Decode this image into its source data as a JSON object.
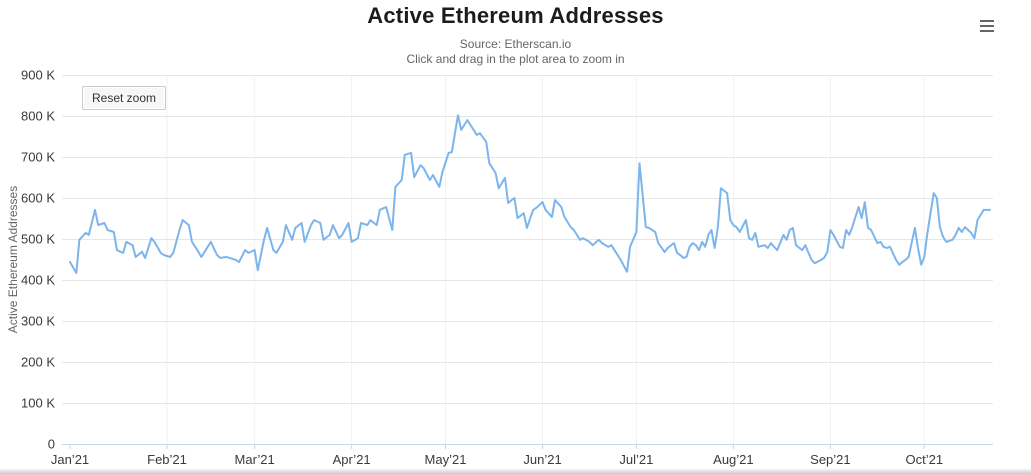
{
  "header": {
    "title": "Active Ethereum Addresses",
    "subtitle_line1": "Source: Etherscan.io",
    "subtitle_line2": "Click and drag in the plot area to zoom in"
  },
  "toolbar": {
    "reset_zoom_label": "Reset zoom",
    "context_menu_icon": "hamburger-menu-icon"
  },
  "colors": {
    "series_line": "#7cb5ec",
    "gridline": "#e6e6e6",
    "minor_vertical_gridline": "#f2f2f2",
    "axis_line": "#ccd6eb",
    "axis_label": "#3a3a3a",
    "axis_title": "#666666",
    "title": "#1c1c1c",
    "subtitle": "#666666"
  },
  "chart_data": {
    "type": "line",
    "title": "Active Ethereum Addresses",
    "subtitle": [
      "Source: Etherscan.io",
      "Click and drag in the plot area to zoom in"
    ],
    "xlabel": "",
    "ylabel": "Active Ethereum Addresses",
    "legend": false,
    "grid": true,
    "x_axis": {
      "unit": "days since 2021-01-01",
      "range_days": [
        0,
        294
      ],
      "ticks": [
        {
          "label": "Jan’21",
          "day": 0
        },
        {
          "label": "Feb’21",
          "day": 31
        },
        {
          "label": "Mar’21",
          "day": 59
        },
        {
          "label": "Apr’21",
          "day": 90
        },
        {
          "label": "May’21",
          "day": 120
        },
        {
          "label": "Jun’21",
          "day": 151
        },
        {
          "label": "Jul’21",
          "day": 181
        },
        {
          "label": "Aug’21",
          "day": 212
        },
        {
          "label": "Sep’21",
          "day": 243
        },
        {
          "label": "Oct’21",
          "day": 273
        }
      ]
    },
    "y_axis": {
      "unit": "addresses (thousands)",
      "range": [
        0,
        900
      ],
      "ticks": [
        {
          "label": "900 K",
          "value": 900
        },
        {
          "label": "800 K",
          "value": 800
        },
        {
          "label": "700 K",
          "value": 700
        },
        {
          "label": "600 K",
          "value": 600
        },
        {
          "label": "500 K",
          "value": 500
        },
        {
          "label": "400 K",
          "value": 400
        },
        {
          "label": "300 K",
          "value": 300
        },
        {
          "label": "200 K",
          "value": 200
        },
        {
          "label": "100 K",
          "value": 100
        },
        {
          "label": "0",
          "value": 0
        }
      ]
    },
    "series": [
      {
        "name": "Active Ethereum Addresses",
        "color": "#7cb5ec",
        "x_days": [
          0,
          2,
          3,
          5,
          6,
          8,
          9,
          11,
          12,
          14,
          15,
          17,
          18,
          20,
          21,
          23,
          24,
          26,
          27,
          29,
          30,
          32,
          33,
          35,
          36,
          38,
          39,
          41,
          42,
          44,
          45,
          47,
          48,
          50,
          51,
          53,
          54,
          56,
          57,
          59,
          60,
          62,
          63,
          65,
          66,
          68,
          69,
          71,
          72,
          74,
          75,
          77,
          78,
          80,
          81,
          83,
          84,
          86,
          87,
          89,
          90,
          92,
          93,
          95,
          96,
          98,
          99,
          101,
          103,
          104,
          106,
          107,
          109,
          110,
          112,
          113,
          115,
          116,
          118,
          119,
          121,
          122,
          124,
          125,
          127,
          128,
          130,
          131,
          133,
          134,
          136,
          137,
          139,
          140,
          142,
          143,
          145,
          146,
          148,
          149,
          151,
          152,
          154,
          155,
          157,
          158,
          160,
          161,
          163,
          164,
          166,
          167,
          169,
          170,
          172,
          173,
          175,
          176,
          178,
          179,
          181,
          182,
          184,
          185,
          187,
          188,
          190,
          191,
          193,
          194,
          195,
          196,
          197,
          198,
          199,
          200,
          201,
          202,
          203,
          204,
          205,
          206,
          207,
          208,
          210,
          211,
          212,
          213,
          214,
          216,
          217,
          218,
          219,
          220,
          222,
          223,
          224,
          225,
          226,
          228,
          229,
          230,
          231,
          232,
          234,
          235,
          236,
          237,
          238,
          240,
          241,
          242,
          243,
          244,
          246,
          247,
          248,
          249,
          250,
          252,
          253,
          254,
          255,
          256,
          258,
          259,
          260,
          261,
          262,
          264,
          265,
          266,
          267,
          268,
          270,
          271,
          272,
          273,
          274,
          276,
          277,
          278,
          279,
          280,
          282,
          283,
          284,
          285,
          286,
          288,
          289,
          290,
          292,
          294
        ],
        "values_thousands": [
          444,
          417,
          498,
          515,
          510,
          571,
          534,
          539,
          522,
          517,
          473,
          466,
          493,
          485,
          456,
          469,
          454,
          502,
          493,
          466,
          461,
          456,
          466,
          522,
          546,
          534,
          493,
          469,
          456,
          481,
          493,
          461,
          454,
          456,
          454,
          449,
          444,
          473,
          466,
          473,
          424,
          498,
          527,
          473,
          466,
          493,
          534,
          498,
          527,
          539,
          493,
          534,
          546,
          539,
          498,
          510,
          534,
          502,
          510,
          539,
          493,
          502,
          539,
          534,
          546,
          534,
          571,
          578,
          522,
          627,
          644,
          705,
          710,
          651,
          680,
          673,
          644,
          656,
          627,
          663,
          710,
          712,
          802,
          766,
          790,
          778,
          754,
          758,
          737,
          685,
          661,
          624,
          649,
          588,
          600,
          551,
          563,
          527,
          571,
          576,
          590,
          571,
          554,
          595,
          578,
          554,
          529,
          522,
          498,
          502,
          493,
          485,
          498,
          490,
          481,
          485,
          461,
          449,
          420,
          481,
          517,
          685,
          529,
          527,
          517,
          490,
          468,
          478,
          490,
          466,
          461,
          454,
          456,
          481,
          490,
          485,
          473,
          493,
          481,
          510,
          522,
          478,
          527,
          624,
          612,
          546,
          534,
          529,
          517,
          546,
          502,
          498,
          515,
          481,
          485,
          478,
          490,
          481,
          473,
          510,
          498,
          522,
          527,
          485,
          473,
          485,
          466,
          449,
          441,
          449,
          454,
          468,
          522,
          510,
          481,
          478,
          522,
          510,
          529,
          578,
          551,
          590,
          527,
          522,
          490,
          493,
          481,
          478,
          481,
          449,
          437,
          444,
          449,
          456,
          527,
          478,
          437,
          456,
          515,
          612,
          600,
          529,
          505,
          493,
          498,
          510,
          527,
          517,
          529,
          515,
          502,
          546,
          571,
          571
        ]
      }
    ]
  }
}
